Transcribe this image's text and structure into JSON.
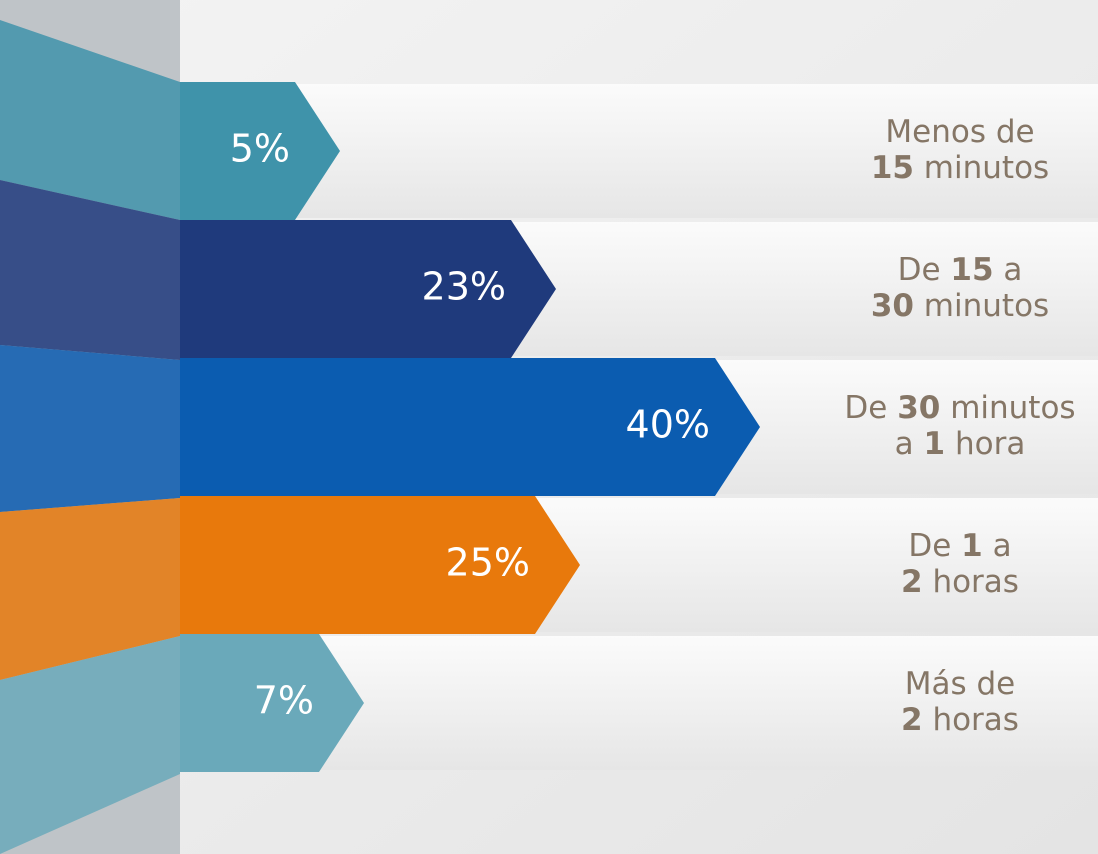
{
  "chart_data": {
    "type": "bar",
    "orientation": "horizontal",
    "categories": [
      [
        "Menos de",
        "15 minutos"
      ],
      [
        "De 15 a",
        "30 minutos"
      ],
      [
        "De 30 minutos",
        "a 1 hora"
      ],
      [
        "De 1 a",
        "2 horas"
      ],
      [
        "Más de",
        "2 horas"
      ]
    ],
    "values": [
      5,
      23,
      40,
      25,
      7
    ],
    "value_labels": [
      "5%",
      "23%",
      "40%",
      "25%",
      "7%"
    ],
    "colors": [
      "#3f93aa",
      "#1f3a7c",
      "#0b5cb0",
      "#e8790c",
      "#6aa9ba"
    ]
  }
}
